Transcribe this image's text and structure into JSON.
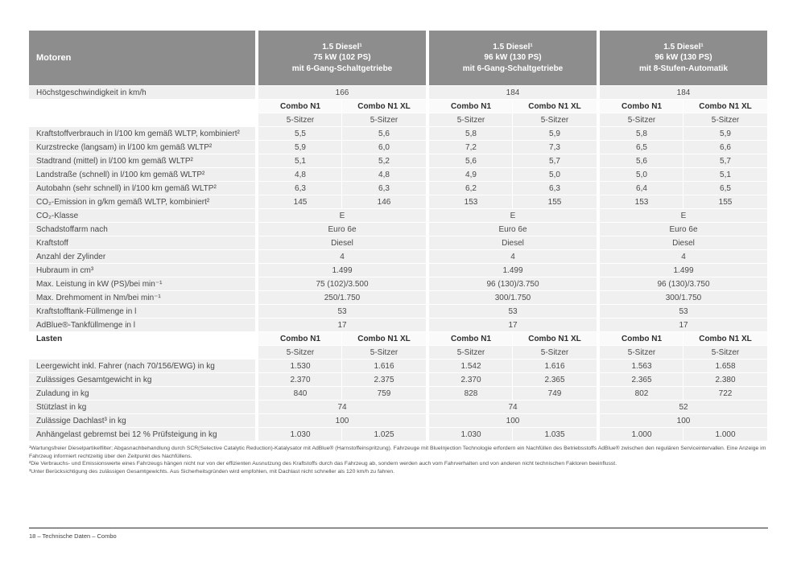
{
  "page": {
    "footer": "18 – Technische Daten – Combo"
  },
  "colors": {
    "header_bg": "#8d8d8d",
    "header_text": "#ffffff",
    "row_bg": "#f0f0f0",
    "subheader_row_bg": "#fafafa",
    "body_text": "#4a4a4a"
  },
  "table": {
    "corner_label": "Motoren",
    "engines": [
      {
        "lines": [
          "1.5 Diesel¹",
          "75 kW (102 PS)",
          "mit 6-Gang-Schaltgetriebe"
        ]
      },
      {
        "lines": [
          "1.5 Diesel¹",
          "96 kW (130 PS)",
          "mit 6-Gang-Schaltgetriebe"
        ]
      },
      {
        "lines": [
          "1.5 Diesel¹",
          "96 kW (130 PS)",
          "mit 8-Stufen-Automatik"
        ]
      }
    ],
    "rows": [
      {
        "type": "span",
        "label": "Höchstgeschwindigkeit in km/h",
        "values": [
          "166",
          "184",
          "184"
        ]
      },
      {
        "type": "sub",
        "label": "",
        "values": [
          "Combo N1",
          "Combo N1 XL",
          "Combo N1",
          "Combo N1 XL",
          "Combo N1",
          "Combo N1 XL"
        ]
      },
      {
        "type": "seat",
        "label": "",
        "values": [
          "5-Sitzer",
          "5-Sitzer",
          "5-Sitzer",
          "5-Sitzer",
          "5-Sitzer",
          "5-Sitzer"
        ]
      },
      {
        "type": "c6",
        "label": "Kraftstoffverbrauch in l/100 km gemäß WLTP, kombiniert²",
        "values": [
          "5,5",
          "5,6",
          "5,8",
          "5,9",
          "5,8",
          "5,9"
        ]
      },
      {
        "type": "c6",
        "label": "Kurzstrecke (langsam) in l/100 km gemäß WLTP²",
        "values": [
          "5,9",
          "6,0",
          "7,2",
          "7,3",
          "6,5",
          "6,6"
        ]
      },
      {
        "type": "c6",
        "label": "Stadtrand (mittel) in l/100 km gemäß WLTP²",
        "values": [
          "5,1",
          "5,2",
          "5,6",
          "5,7",
          "5,6",
          "5,7"
        ]
      },
      {
        "type": "c6",
        "label": "Landstraße (schnell) in l/100 km gemäß WLTP²",
        "values": [
          "4,8",
          "4,8",
          "4,9",
          "5,0",
          "5,0",
          "5,1"
        ]
      },
      {
        "type": "c6",
        "label": "Autobahn (sehr schnell) in l/100 km gemäß WLTP²",
        "values": [
          "6,3",
          "6,3",
          "6,2",
          "6,3",
          "6,4",
          "6,5"
        ]
      },
      {
        "type": "c6",
        "label": "CO₂-Emission in g/km gemäß WLTP, kombiniert²",
        "values": [
          "145",
          "146",
          "153",
          "155",
          "153",
          "155"
        ]
      },
      {
        "type": "span",
        "label": "CO₂-Klasse",
        "values": [
          "E",
          "E",
          "E"
        ]
      },
      {
        "type": "span",
        "label": "Schadstoffarm nach",
        "values": [
          "Euro 6e",
          "Euro 6e",
          "Euro 6e"
        ]
      },
      {
        "type": "span",
        "label": "Kraftstoff",
        "values": [
          "Diesel",
          "Diesel",
          "Diesel"
        ]
      },
      {
        "type": "span",
        "label": "Anzahl der Zylinder",
        "values": [
          "4",
          "4",
          "4"
        ]
      },
      {
        "type": "span",
        "label": "Hubraum in cm³",
        "values": [
          "1.499",
          "1.499",
          "1.499"
        ]
      },
      {
        "type": "span",
        "label": "Max. Leistung in kW (PS)/bei min⁻¹",
        "values": [
          "75 (102)/3.500",
          "96 (130)/3.750",
          "96 (130)/3.750"
        ]
      },
      {
        "type": "span",
        "label": "Max. Drehmoment in Nm/bei min⁻¹",
        "values": [
          "250/1.750",
          "300/1.750",
          "300/1.750"
        ]
      },
      {
        "type": "span",
        "label": "Kraftstofftank-Füllmenge in l",
        "values": [
          "53",
          "53",
          "53"
        ]
      },
      {
        "type": "span",
        "label": "AdBlue®-Tankfüllmenge in l",
        "values": [
          "17",
          "17",
          "17"
        ]
      },
      {
        "type": "sub",
        "label": "Lasten",
        "values": [
          "Combo N1",
          "Combo N1 XL",
          "Combo N1",
          "Combo N1 XL",
          "Combo N1",
          "Combo N1 XL"
        ]
      },
      {
        "type": "seat",
        "label": "",
        "values": [
          "5-Sitzer",
          "5-Sitzer",
          "5-Sitzer",
          "5-Sitzer",
          "5-Sitzer",
          "5-Sitzer"
        ]
      },
      {
        "type": "c6",
        "label": "Leergewicht inkl. Fahrer (nach 70/156/EWG) in kg",
        "values": [
          "1.530",
          "1.616",
          "1.542",
          "1.616",
          "1.563",
          "1.658"
        ]
      },
      {
        "type": "c6",
        "label": "Zulässiges Gesamtgewicht in kg",
        "values": [
          "2.370",
          "2.375",
          "2.370",
          "2.365",
          "2.365",
          "2.380"
        ]
      },
      {
        "type": "c6",
        "label": "Zuladung in kg",
        "values": [
          "840",
          "759",
          "828",
          "749",
          "802",
          "722"
        ]
      },
      {
        "type": "span",
        "label": "Stützlast in kg",
        "values": [
          "74",
          "74",
          "52"
        ]
      },
      {
        "type": "span",
        "label": "Zulässige Dachlast³ in kg",
        "values": [
          "100",
          "100",
          "100"
        ]
      },
      {
        "type": "c6",
        "label": "Anhängelast gebremst bei 12 % Prüfsteigung in kg",
        "values": [
          "1.030",
          "1.025",
          "1.030",
          "1.035",
          "1.000",
          "1.000"
        ]
      }
    ]
  },
  "footnotes": [
    "¹Wartungsfreier Dieselpartikelfilter; Abgasnachbehandlung durch SCR(Selective Catalytic Reduction)-Katalysator mit AdBlue® (Harnstoffeinspritzung). Fahrzeuge mit BlueInjection Technologie erfordern ein Nachfüllen des Betriebsstoffs AdBlue® zwischen den regulären Serviceintervallen. Eine Anzeige im Fahrzeug informiert rechtzeitig über den Zeitpunkt des Nachfüllens.",
    "²Die Verbrauchs- und Emissionswerte eines Fahrzeugs hängen nicht nur von der effizienten Ausnutzung des Kraftstoffs durch das Fahrzeug ab, sondern werden auch vom Fahrverhalten und von anderen nicht technischen Faktoren beeinflusst.",
    "³Unter Berücksichtigung des zulässigen Gesamtgewichts. Aus Sicherheitsgründen wird empfohlen, mit Dachlast nicht schneller als 120 km/h zu fahren."
  ]
}
